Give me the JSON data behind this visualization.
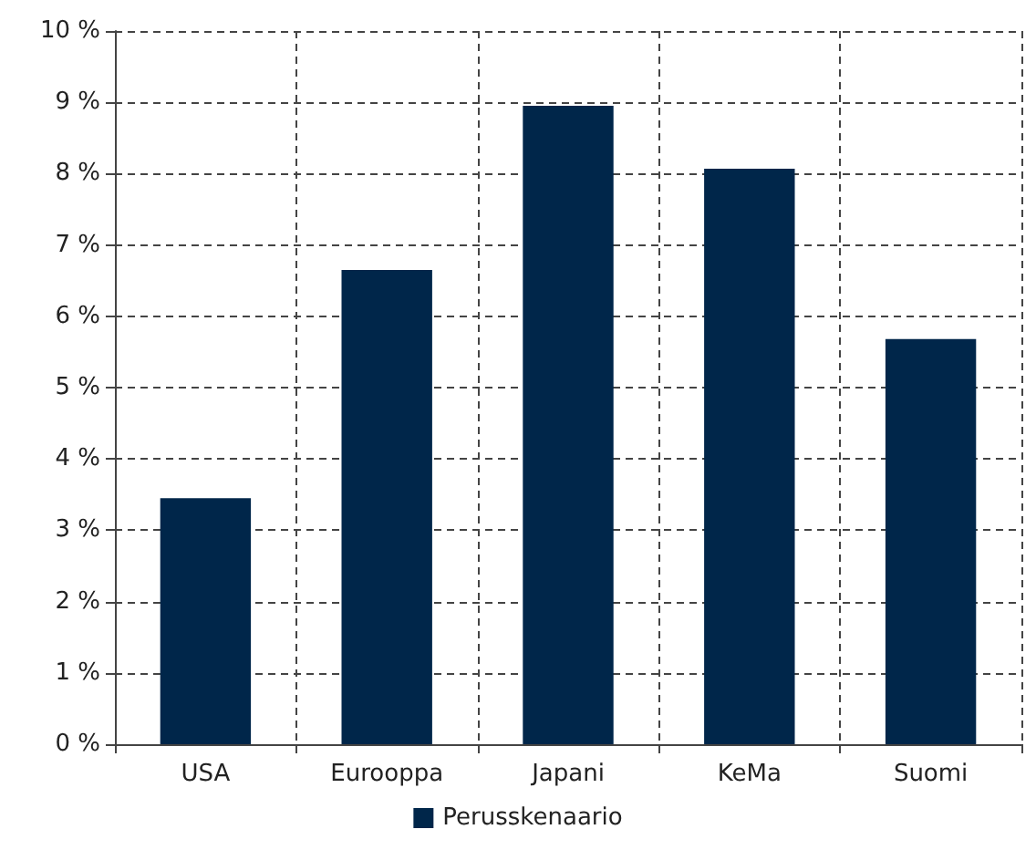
{
  "chart_data": {
    "type": "bar",
    "categories": [
      "USA",
      "Eurooppa",
      "Japani",
      "KeMa",
      "Suomi"
    ],
    "series": [
      {
        "name": "Perusskenaario",
        "color": "#00264a",
        "values": [
          3.45,
          6.65,
          8.95,
          8.07,
          5.68
        ]
      }
    ],
    "ylim": [
      0,
      10
    ],
    "yticks": [
      {
        "value": 0,
        "label": "0 %"
      },
      {
        "value": 1,
        "label": "1 %"
      },
      {
        "value": 2,
        "label": "2 %"
      },
      {
        "value": 3,
        "label": "3 %"
      },
      {
        "value": 4,
        "label": "4 %"
      },
      {
        "value": 5,
        "label": "5 %"
      },
      {
        "value": 6,
        "label": "6 %"
      },
      {
        "value": 7,
        "label": "7 %"
      },
      {
        "value": 8,
        "label": "8 %"
      },
      {
        "value": 9,
        "label": "9 %"
      },
      {
        "value": 10,
        "label": "10 %"
      }
    ],
    "grid": true,
    "legend": "bottom"
  }
}
